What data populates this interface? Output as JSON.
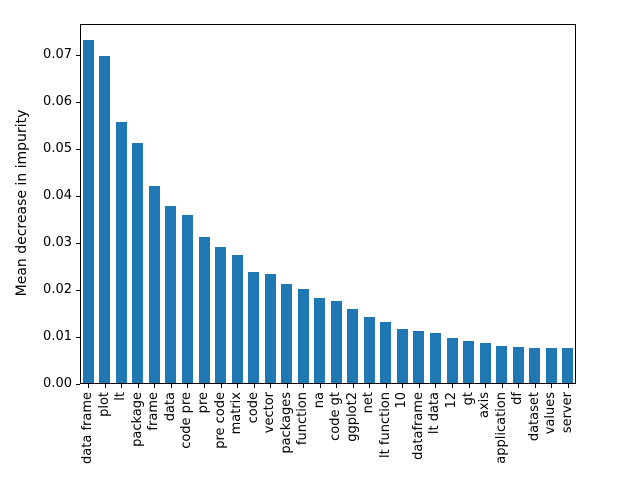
{
  "chart_data": {
    "type": "bar",
    "title": "",
    "xlabel": "",
    "ylabel": "Mean decrease in impurity",
    "categories": [
      "data frame",
      "plot",
      "lt",
      "package",
      "frame",
      "data",
      "code pre",
      "pre",
      "pre code",
      "matrix",
      "code",
      "vector",
      "packages",
      "function",
      "na",
      "code gt",
      "ggplot2",
      "net",
      "lt function",
      "10",
      "dataframe",
      "lt data",
      "12",
      "gt",
      "axis",
      "application",
      "df",
      "dataset",
      "values",
      "server"
    ],
    "values": [
      0.073,
      0.0696,
      0.0557,
      0.0511,
      0.042,
      0.0377,
      0.0357,
      0.0311,
      0.029,
      0.0273,
      0.0237,
      0.0233,
      0.0212,
      0.02,
      0.0181,
      0.0175,
      0.0158,
      0.0141,
      0.0131,
      0.0115,
      0.011,
      0.0107,
      0.0096,
      0.0089,
      0.0085,
      0.0078,
      0.0076,
      0.0075,
      0.0075,
      0.0074
    ],
    "ylim": [
      0,
      0.0767
    ],
    "yticks": [
      0.0,
      0.01,
      0.02,
      0.03,
      0.04,
      0.05,
      0.06,
      0.07
    ],
    "ytick_labels": [
      "0.00",
      "0.01",
      "0.02",
      "0.03",
      "0.04",
      "0.05",
      "0.06",
      "0.07"
    ],
    "x_tick_rotation": 90,
    "grid": false,
    "legend": "none",
    "bar_color": "#1f77b4",
    "axis_color": "#000000",
    "background_color": "#ffffff"
  }
}
